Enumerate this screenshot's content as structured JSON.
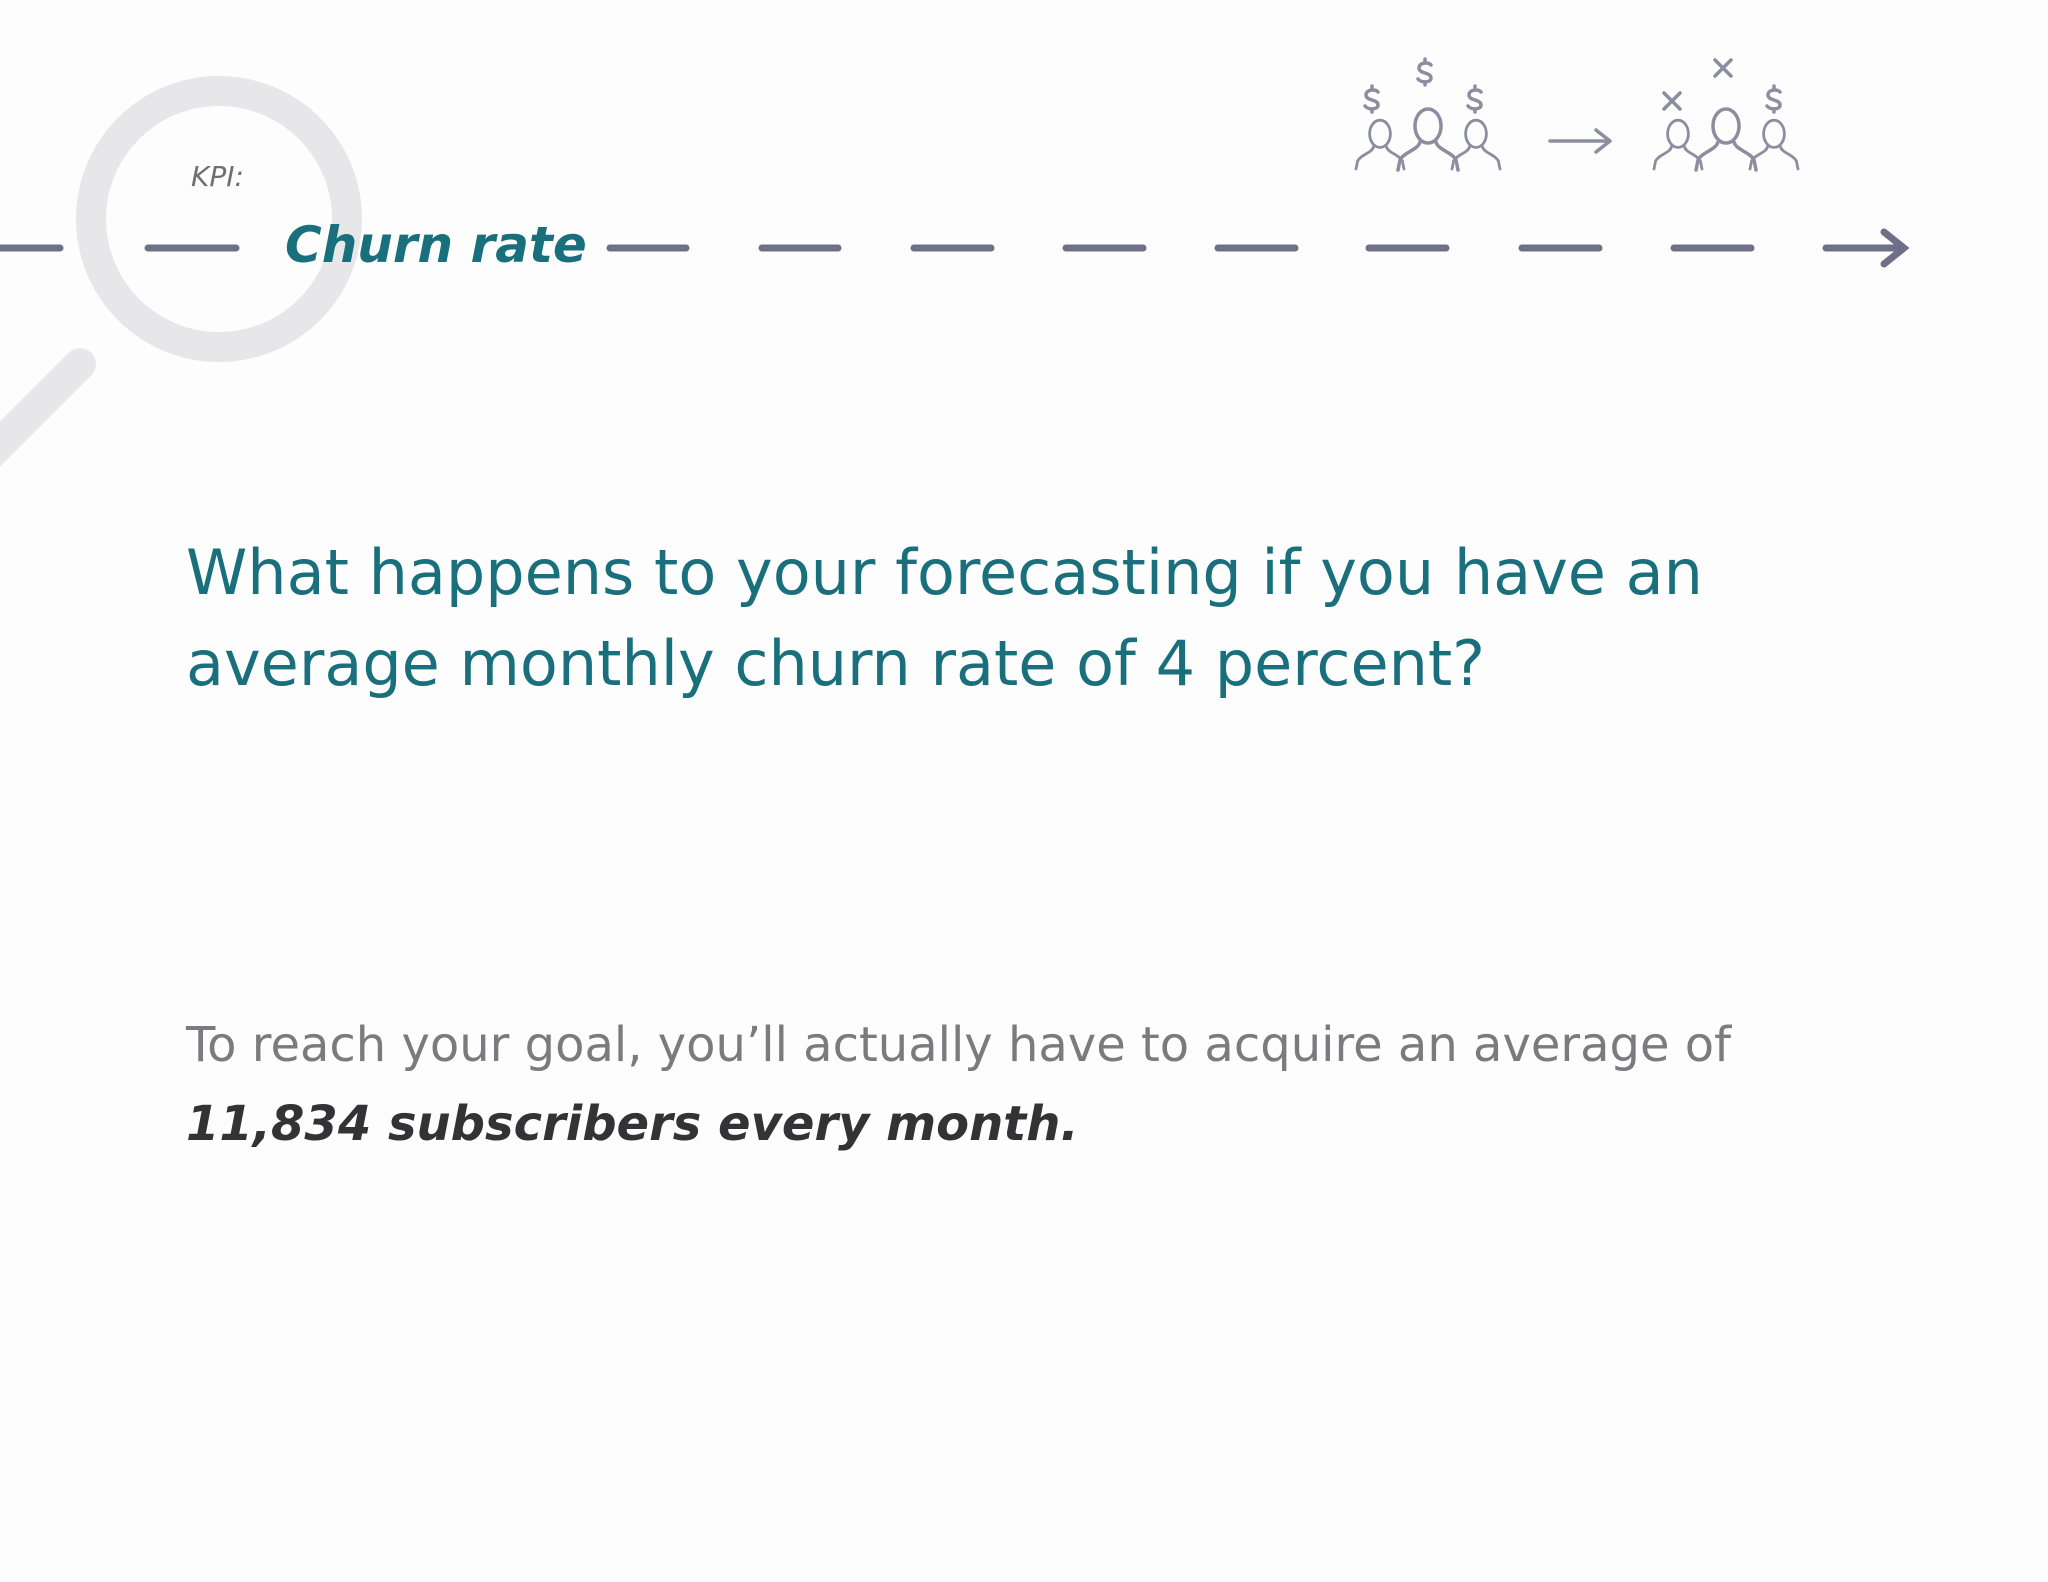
{
  "header": {
    "label": "KPI:",
    "title": "Churn rate"
  },
  "question": {
    "lines": [
      "What happens to your forecasting if you have an",
      "average monthly churn rate of 4 percent?"
    ]
  },
  "answer": {
    "text": "To reach your goal, you’ll actually have to acquire an average of",
    "emphasis": "11,834 subscribers every month."
  }
}
